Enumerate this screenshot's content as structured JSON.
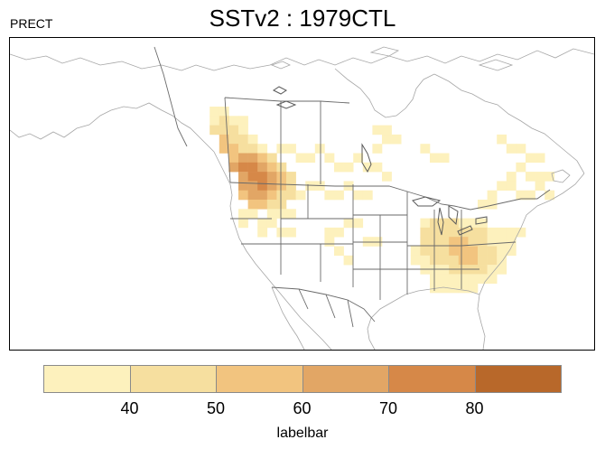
{
  "header": {
    "title": "SSTv2 : 1979CTL",
    "variable": "PRECT"
  },
  "legend": {
    "title": "labelbar",
    "colors": [
      "#fdf1bd",
      "#f6df9f",
      "#f2c47f",
      "#e2a665",
      "#d68848",
      "#b8682a"
    ],
    "tick_labels": [
      "40",
      "50",
      "60",
      "70",
      "80"
    ]
  },
  "chart_data": {
    "type": "heatmap",
    "title": "SSTv2 : 1979CTL",
    "variable": "PRECT",
    "region": "North America",
    "color_levels": [
      40,
      50,
      60,
      70,
      80
    ],
    "regions": [
      {
        "area": "Pacific Northwest coast",
        "bin": 5
      },
      {
        "area": "Washington / Oregon interior",
        "bin": 4
      },
      {
        "area": "Southern British Columbia",
        "bin": 3
      },
      {
        "area": "Northern Idaho / western Montana",
        "bin": 2
      },
      {
        "area": "Northern plains / southern prairies",
        "bin": 1
      },
      {
        "area": "Great Lakes region",
        "bin": 2
      },
      {
        "area": "Ohio Valley",
        "bin": 3
      },
      {
        "area": "Northeastern US / Quebec",
        "bin": 1
      },
      {
        "area": "Southeastern US",
        "bin": 1
      }
    ]
  }
}
